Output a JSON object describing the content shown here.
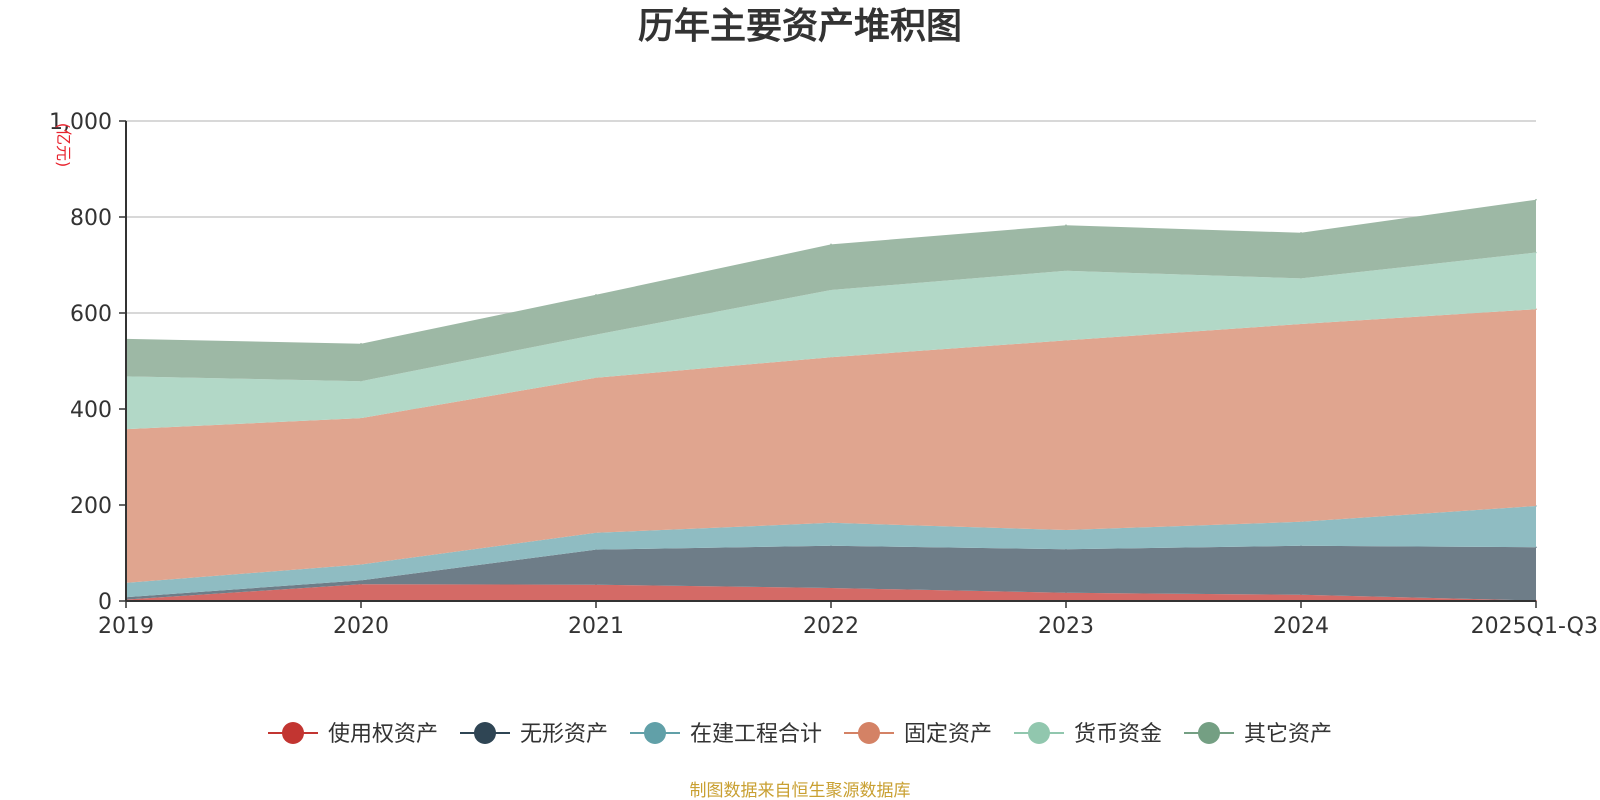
{
  "chart_data": {
    "type": "area",
    "stacked": true,
    "title": "历年主要资产堆积图",
    "unit_label": "(亿元)",
    "categories": [
      "2019",
      "2020",
      "2021",
      "2022",
      "2023",
      "2024",
      "2025Q1-Q3"
    ],
    "ylim": [
      0,
      1000
    ],
    "yticks": [
      0,
      200,
      400,
      600,
      800,
      "1,000"
    ],
    "grid": true,
    "legend_position": "bottom-center",
    "series": [
      {
        "name": "使用权资产",
        "color": "#c23531",
        "fill": "#d46a66",
        "values": [
          3,
          35,
          34,
          27,
          17,
          13,
          1
        ]
      },
      {
        "name": "无形资产",
        "color": "#2f4554",
        "fill": "#6e7d88",
        "values": [
          5,
          8,
          73,
          88,
          91,
          102,
          111
        ]
      },
      {
        "name": "在建工程合计",
        "color": "#61a0a8",
        "fill": "#8fbcc2",
        "values": [
          30,
          33,
          35,
          48,
          40,
          50,
          86
        ]
      },
      {
        "name": "固定资产",
        "color": "#d48265",
        "fill": "#e0a58f",
        "values": [
          320,
          305,
          323,
          345,
          395,
          412,
          410
        ]
      },
      {
        "name": "货币资金",
        "color": "#91c7ae",
        "fill": "#b2d8c7",
        "values": [
          110,
          77,
          90,
          140,
          145,
          95,
          118
        ]
      },
      {
        "name": "其它资产",
        "color": "#749f83",
        "fill": "#9db8a5",
        "values": [
          78,
          78,
          83,
          95,
          95,
          95,
          110
        ]
      }
    ]
  },
  "source_note": "制图数据来自恒生聚源数据库"
}
